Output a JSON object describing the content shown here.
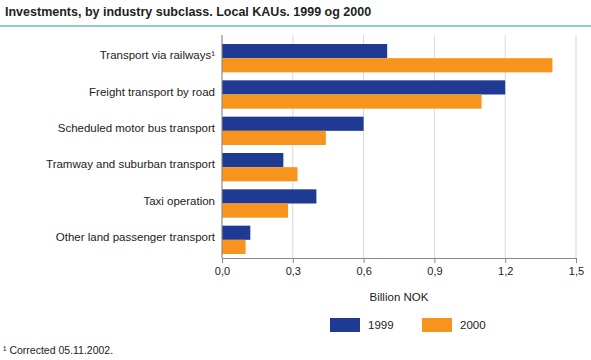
{
  "chart_data": {
    "type": "bar",
    "orientation": "horizontal",
    "title": "Investments, by industry subclass. Local KAUs. 1999 og 2000",
    "categories": [
      "Transport via railways¹",
      "Freight transport by road",
      "Scheduled motor bus transport",
      "Tramway and suburban transport",
      "Taxi operation",
      "Other land passenger transport"
    ],
    "series": [
      {
        "name": "1999",
        "color": "#1f3a93",
        "values": [
          0.7,
          1.2,
          0.6,
          0.26,
          0.4,
          0.12
        ]
      },
      {
        "name": "2000",
        "color": "#f7941d",
        "values": [
          1.4,
          1.1,
          0.44,
          0.32,
          0.28,
          0.1
        ]
      }
    ],
    "x_label": "Billion NOK",
    "xlim": [
      0,
      1.5
    ],
    "xticks": [
      {
        "value": 0,
        "label": "0,0"
      },
      {
        "value": 0.3,
        "label": "0,3"
      },
      {
        "value": 0.6,
        "label": "0,6"
      },
      {
        "value": 0.9,
        "label": "0,9"
      },
      {
        "value": 1.2,
        "label": "1,2"
      },
      {
        "value": 1.5,
        "label": "1,5"
      }
    ],
    "grid": true,
    "legend": "bottom",
    "annotations": [
      "¹ Corrected 05.11.2002."
    ]
  }
}
